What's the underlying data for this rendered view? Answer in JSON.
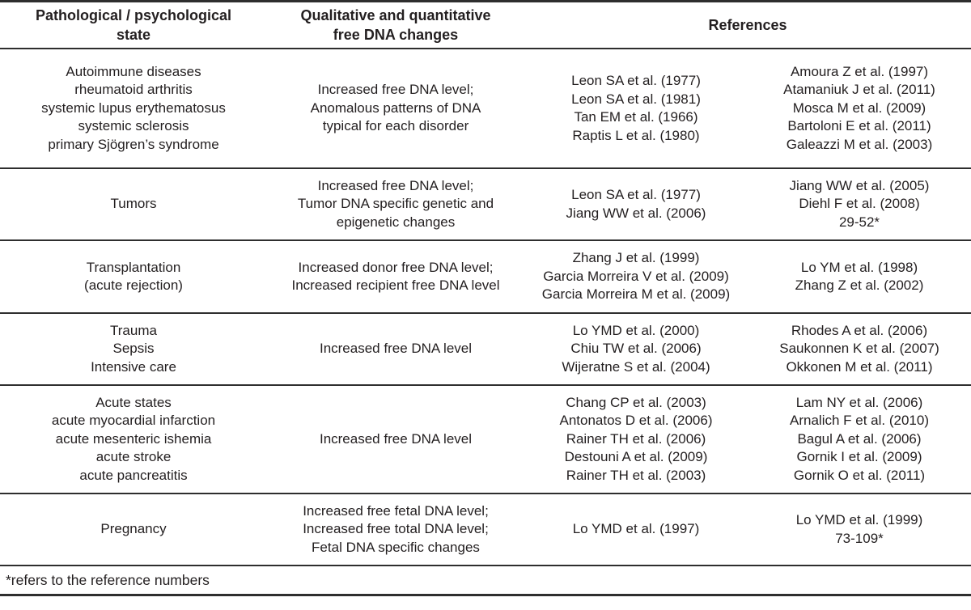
{
  "colors": {
    "background": "#ffffff",
    "text": "#231f20",
    "rule_lines": "#2e2e2e"
  },
  "table": {
    "headers": {
      "state": [
        "Pathological / psychological",
        "state"
      ],
      "changes": [
        "Qualitative and quantitative",
        "free DNA changes"
      ],
      "references": "References"
    },
    "rows": [
      {
        "state": [
          "Autoimmune diseases",
          "rheumatoid arthritis",
          "systemic lupus erythematosus",
          "systemic sclerosis",
          "primary Sjögren’s syndrome"
        ],
        "changes": [
          "Increased free DNA level;",
          "Anomalous patterns of DNA",
          "typical for each disorder"
        ],
        "refs_a": [
          "Leon SA et al. (1977)",
          "Leon SA et al. (1981)",
          "Tan EM et al. (1966)",
          "Raptis L et al. (1980)"
        ],
        "refs_b": [
          "Amoura Z et al. (1997)",
          "Atamaniuk J et al. (2011)",
          "Mosca M et al. (2009)",
          "Bartoloni E et al. (2011)",
          "Galeazzi M et al. (2003)"
        ]
      },
      {
        "state": [
          "Tumors"
        ],
        "changes": [
          "Increased free DNA level;",
          "Tumor DNA specific genetic and",
          "epigenetic changes"
        ],
        "refs_a": [
          "Leon SA et al. (1977)",
          "Jiang WW et al. (2006)"
        ],
        "refs_b": [
          "Jiang WW et al. (2005)",
          "Diehl F et al. (2008)",
          "29-52*"
        ]
      },
      {
        "state": [
          "Transplantation",
          "(acute rejection)"
        ],
        "changes": [
          "Increased donor free DNA level;",
          "Increased recipient free DNA level"
        ],
        "refs_a": [
          "Zhang J et al. (1999)",
          "Garcia Morreira V et al. (2009)",
          "Garcia Morreira M et al. (2009)"
        ],
        "refs_b": [
          "Lo YM et al. (1998)",
          "Zhang Z et al. (2002)"
        ]
      },
      {
        "state": [
          "Trauma",
          "Sepsis",
          "Intensive care"
        ],
        "changes": [
          "Increased free DNA level"
        ],
        "refs_a": [
          "Lo YMD et al. (2000)",
          "Chiu TW et al. (2006)",
          "Wijeratne S et al. (2004)"
        ],
        "refs_b": [
          "Rhodes A et al. (2006)",
          "Saukonnen K et al. (2007)",
          "Okkonen M et al. (2011)"
        ]
      },
      {
        "state": [
          "Acute states",
          "acute myocardial infarction",
          "acute mesenteric ishemia",
          "acute stroke",
          "acute pancreatitis"
        ],
        "changes": [
          "Increased free DNA level"
        ],
        "refs_a": [
          "Chang CP et al. (2003)",
          "Antonatos D et al. (2006)",
          "Rainer TH et al. (2006)",
          "Destouni A et al. (2009)",
          "Rainer TH et al. (2003)"
        ],
        "refs_b": [
          "Lam NY et al. (2006)",
          "Arnalich F et al. (2010)",
          "Bagul A et al. (2006)",
          "Gornik I et al. (2009)",
          "Gornik O et al. (2011)"
        ]
      },
      {
        "state": [
          "Pregnancy"
        ],
        "changes": [
          "Increased free fetal DNA level;",
          "Increased free total DNA level;",
          "Fetal DNA specific changes"
        ],
        "refs_a": [
          "Lo YMD et al. (1997)"
        ],
        "refs_b": [
          "Lo YMD et al. (1999)",
          "73-109*"
        ]
      }
    ],
    "footnote": "*refers to the reference numbers"
  }
}
